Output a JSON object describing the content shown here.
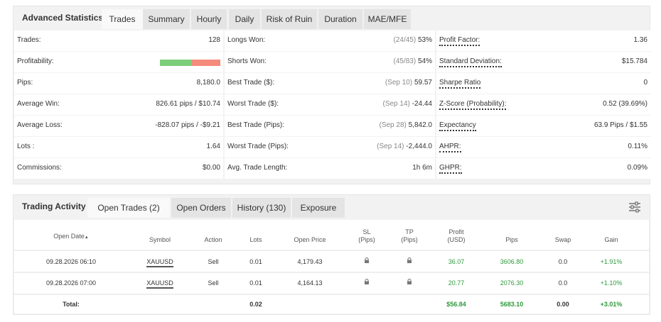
{
  "stats": {
    "title": "Advanced Statistics",
    "tabs": [
      "Trades",
      "Summary",
      "Hourly",
      "Daily",
      "Risk of Ruin",
      "Duration",
      "MAE/MFE"
    ],
    "col1": [
      {
        "label": "Trades:",
        "value": "128"
      },
      {
        "label": "Profitability:",
        "value": "",
        "bar": {
          "win_fraction": 0.53
        }
      },
      {
        "label": "Pips:",
        "value": "8,180.0"
      },
      {
        "label": "Average Win:",
        "value": "826.61 pips / $10.74"
      },
      {
        "label": "Average Loss:",
        "value": "-828.07 pips / -$9.21"
      },
      {
        "label": "Lots :",
        "value": "1.64"
      },
      {
        "label": "Commissions:",
        "value": "$0.00"
      }
    ],
    "col2": [
      {
        "label": "Longs Won:",
        "detail": "(24/45)",
        "value": "53%"
      },
      {
        "label": "Shorts Won:",
        "detail": "(45/83)",
        "value": "54%"
      },
      {
        "label": "Best Trade ($):",
        "detail": "(Sep 10)",
        "value": "59.57"
      },
      {
        "label": "Worst Trade ($):",
        "detail": "(Sep 14)",
        "value": "-24.44"
      },
      {
        "label": "Best Trade (Pips):",
        "detail": "(Sep 28)",
        "value": "5,842.0"
      },
      {
        "label": "Worst Trade (Pips):",
        "detail": "(Sep 14)",
        "value": "-2,444.0"
      },
      {
        "label": "Avg. Trade Length:",
        "detail": "",
        "value": "1h 6m"
      }
    ],
    "col3": [
      {
        "label": "Profit Factor:",
        "value": "1.36"
      },
      {
        "label": "Standard Deviation:",
        "value": "$15.784"
      },
      {
        "label": "Sharpe Ratio",
        "value": "0"
      },
      {
        "label": "Z-Score (Probability):",
        "value": "0.52 (39.69%)"
      },
      {
        "label": "Expectancy",
        "value": "63.9 Pips / $1.55"
      },
      {
        "label": "AHPR:",
        "value": "0.11%"
      },
      {
        "label": "GHPR:",
        "value": "0.09%"
      }
    ]
  },
  "activity": {
    "title": "Trading Activity",
    "tabs": [
      "Open Trades (2)",
      "Open Orders",
      "History (130)",
      "Exposure"
    ],
    "columns": [
      "Open Date",
      "Symbol",
      "Action",
      "Lots",
      "Open Price",
      "SL\n(Pips)",
      "TP\n(Pips)",
      "Profit\n(USD)",
      "Pips",
      "Swap",
      "Gain"
    ],
    "sort_indicator": "▲",
    "rows": [
      {
        "open_date": "09.28.2026 06:10",
        "symbol": "XAUUSD",
        "action": "Sell",
        "lots": "0.01",
        "open_price": "4,179.43",
        "profit": "36.07",
        "pips": "3606.80",
        "swap": "0.0",
        "gain": "+1.91%"
      },
      {
        "open_date": "09.28.2026 07:00",
        "symbol": "XAUUSD",
        "action": "Sell",
        "lots": "0.01",
        "open_price": "4,164.13",
        "profit": "20.77",
        "pips": "2076.30",
        "swap": "0.0",
        "gain": "+1.10%"
      }
    ],
    "total": {
      "label": "Total:",
      "lots": "0.02",
      "profit": "$56.84",
      "pips": "5683.10",
      "swap": "0.00",
      "gain": "+3.01%"
    }
  },
  "colors": {
    "green": "#2f9a3b",
    "bar_win": "#7cce7a",
    "bar_loss": "#f48b7b"
  },
  "icons": {
    "sl": "lock-icon",
    "tp": "lock-icon",
    "settings": "sliders-icon"
  }
}
